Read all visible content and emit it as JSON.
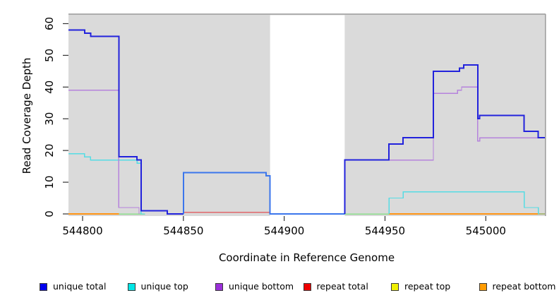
{
  "chart_data": {
    "type": "step-line",
    "title": "",
    "xlabel": "Coordinate in Reference Genome",
    "ylabel": "Read Coverage Depth",
    "xlim": [
      544793,
      545029.3
    ],
    "ylim": [
      0,
      63
    ],
    "x_ticks": [
      544800,
      544850,
      544900,
      544950,
      545000
    ],
    "y_ticks": [
      0,
      10,
      20,
      30,
      40,
      50,
      60
    ],
    "grid": "off",
    "plot_background": "#DADADA",
    "border_color": "#999999",
    "gap_region": {
      "from": 544893,
      "to": 544930,
      "color": "#FFFFFF",
      "note": "no-data white band"
    },
    "series": [
      {
        "name": "repeat top",
        "color": "#F5F500",
        "width": 1.4,
        "segments": [],
        "note": "fully hidden beneath overlapping baseline lines"
      },
      {
        "name": "unique top + repeat top overlap",
        "color": "#8CDE8C",
        "width": 1.5,
        "segments": [
          [
            [
              544818,
              0
            ],
            [
              544831,
              0
            ]
          ],
          [
            [
              544930,
              0
            ],
            [
              544952,
              0
            ]
          ]
        ]
      },
      {
        "name": "repeat bottom",
        "color": "#FF9414",
        "width": 1.6,
        "segments": [
          [
            [
              544793,
              0
            ],
            [
              544818,
              0
            ]
          ],
          [
            [
              544952,
              0
            ],
            [
              545029.3,
              0
            ]
          ]
        ]
      },
      {
        "name": "repeat total",
        "color": "#E0686C",
        "width": 1.3,
        "segments": [
          [
            [
              544850,
              0.5
            ],
            [
              544893,
              0.5
            ]
          ]
        ]
      },
      {
        "name": "unique top",
        "color": "#55DCE4",
        "width": 1.4,
        "segments": [
          [
            [
              544793,
              19
            ],
            [
              544801,
              19
            ],
            [
              544801,
              18
            ],
            [
              544804,
              18
            ],
            [
              544804,
              17
            ],
            [
              544827,
              17
            ],
            [
              544827,
              16
            ],
            [
              544829,
              16
            ],
            [
              544829,
              0
            ],
            [
              544831,
              0
            ]
          ],
          [
            [
              544952,
              0
            ],
            [
              544952,
              5
            ],
            [
              544959,
              5
            ],
            [
              544959,
              7
            ],
            [
              545019,
              7
            ],
            [
              545019,
              2
            ],
            [
              545026,
              2
            ],
            [
              545026,
              0
            ],
            [
              545029.3,
              0
            ]
          ]
        ]
      },
      {
        "name": "unique bottom",
        "color": "#B583DC",
        "width": 1.4,
        "segments": [
          [
            [
              544793,
              39
            ],
            [
              544818,
              39
            ],
            [
              544818,
              2
            ],
            [
              544828,
              2
            ],
            [
              544828,
              0
            ]
          ],
          [
            [
              544930,
              17
            ],
            [
              544974,
              17
            ],
            [
              544974,
              38
            ],
            [
              544986,
              38
            ],
            [
              544986,
              39
            ],
            [
              544988,
              39
            ],
            [
              544988,
              40
            ],
            [
              544996,
              40
            ],
            [
              544996,
              23
            ],
            [
              544997,
              23
            ],
            [
              544997,
              24
            ],
            [
              545029.3,
              24
            ]
          ]
        ]
      },
      {
        "name": "unique total (left)",
        "color": "#2222DC",
        "width": 2,
        "segments": [
          [
            [
              544793,
              58
            ],
            [
              544801,
              58
            ],
            [
              544801,
              57
            ],
            [
              544804,
              57
            ],
            [
              544804,
              56
            ],
            [
              544818,
              56
            ],
            [
              544818,
              18
            ],
            [
              544827,
              18
            ],
            [
              544827,
              17
            ],
            [
              544829,
              17
            ],
            [
              544829,
              1
            ],
            [
              544842,
              1
            ],
            [
              544842,
              0
            ],
            [
              544850,
              0
            ]
          ]
        ]
      },
      {
        "name": "unique total (mid)",
        "color": "#3B76EC",
        "width": 2,
        "segments": [
          [
            [
              544850,
              0
            ],
            [
              544850,
              13
            ],
            [
              544891,
              13
            ],
            [
              544891,
              12
            ],
            [
              544893,
              12
            ],
            [
              544893,
              0
            ],
            [
              544930,
              0
            ]
          ]
        ]
      },
      {
        "name": "unique total (right)",
        "color": "#2222DC",
        "width": 2,
        "segments": [
          [
            [
              544930,
              0
            ],
            [
              544930,
              17
            ],
            [
              544952,
              17
            ],
            [
              544952,
              22
            ],
            [
              544959,
              22
            ],
            [
              544959,
              24
            ],
            [
              544974,
              24
            ],
            [
              544974,
              45
            ],
            [
              544987,
              45
            ],
            [
              544987,
              46
            ],
            [
              544989,
              46
            ],
            [
              544989,
              47
            ],
            [
              544996,
              47
            ],
            [
              544996,
              30
            ],
            [
              544997,
              30
            ],
            [
              544997,
              31
            ],
            [
              545019,
              31
            ],
            [
              545019,
              26
            ],
            [
              545026,
              26
            ],
            [
              545026,
              24
            ],
            [
              545029.3,
              24
            ]
          ]
        ]
      }
    ]
  },
  "legend": {
    "items": [
      {
        "label": "unique total",
        "color": "#0000EE"
      },
      {
        "label": "unique top",
        "color": "#00E5E5"
      },
      {
        "label": "unique bottom",
        "color": "#9B30D9"
      },
      {
        "label": "repeat total",
        "color": "#EE0000"
      },
      {
        "label": "repeat top",
        "color": "#F0F000"
      },
      {
        "label": "repeat bottom",
        "color": "#FF9C00"
      }
    ]
  }
}
